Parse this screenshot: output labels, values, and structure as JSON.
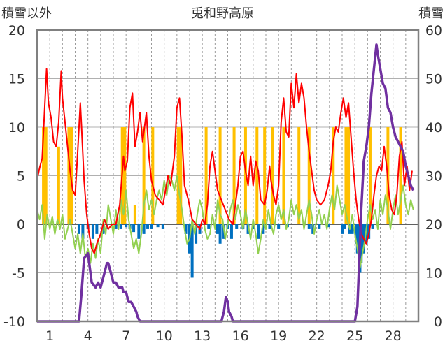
{
  "chart_data": {
    "type": "line",
    "title": "兎和野高原",
    "y_left_label": "積雪以外",
    "y_right_label": "積雪",
    "y_left_ticks": [
      "20",
      "15",
      "10",
      "5",
      "0",
      "-5",
      "-10"
    ],
    "y_right_ticks": [
      "60",
      "50",
      "40",
      "30",
      "20",
      "10",
      "0"
    ],
    "y_left_lim": [
      -10,
      20
    ],
    "y_right_lim": [
      0,
      60
    ],
    "x_lim": [
      0,
      30
    ],
    "x_ticks": [
      {
        "x": 1,
        "label": "1"
      },
      {
        "x": 4,
        "label": "4"
      },
      {
        "x": 7,
        "label": "7"
      },
      {
        "x": 10,
        "label": "10"
      },
      {
        "x": 13,
        "label": "13"
      },
      {
        "x": 16,
        "label": "16"
      },
      {
        "x": 19,
        "label": "19"
      },
      {
        "x": 22,
        "label": "22"
      },
      {
        "x": 25,
        "label": "25"
      },
      {
        "x": 28,
        "label": "28"
      }
    ],
    "grid": true,
    "colors": {
      "temperature": "#ff0000",
      "wind": "#92d050",
      "precipitation": "#ffc000",
      "negative_bar": "#0070c0",
      "snow_depth": "#7030a0"
    },
    "temperature": [
      [
        0.0,
        4.6
      ],
      [
        0.2,
        5.8
      ],
      [
        0.4,
        6.8
      ],
      [
        0.6,
        12.0
      ],
      [
        0.75,
        16.0
      ],
      [
        0.9,
        12.5
      ],
      [
        1.1,
        11.0
      ],
      [
        1.3,
        8.5
      ],
      [
        1.5,
        8.0
      ],
      [
        1.7,
        10.5
      ],
      [
        1.9,
        15.8
      ],
      [
        2.0,
        13.0
      ],
      [
        2.2,
        10.5
      ],
      [
        2.4,
        8.0
      ],
      [
        2.6,
        5.5
      ],
      [
        2.8,
        3.5
      ],
      [
        3.0,
        3.0
      ],
      [
        3.2,
        7.5
      ],
      [
        3.4,
        12.5
      ],
      [
        3.5,
        10.0
      ],
      [
        3.7,
        4.5
      ],
      [
        3.9,
        1.0
      ],
      [
        4.1,
        -1.0
      ],
      [
        4.3,
        -2.5
      ],
      [
        4.5,
        -3.0
      ],
      [
        4.7,
        -2.0
      ],
      [
        5.0,
        -1.0
      ],
      [
        5.3,
        0.5
      ],
      [
        5.6,
        -0.5
      ],
      [
        5.9,
        0.0
      ],
      [
        6.2,
        0.0
      ],
      [
        6.5,
        2.0
      ],
      [
        6.8,
        7.0
      ],
      [
        6.9,
        5.5
      ],
      [
        7.1,
        6.5
      ],
      [
        7.3,
        12.0
      ],
      [
        7.5,
        13.5
      ],
      [
        7.7,
        8.0
      ],
      [
        7.9,
        9.5
      ],
      [
        8.1,
        11.5
      ],
      [
        8.3,
        8.5
      ],
      [
        8.5,
        10.5
      ],
      [
        8.6,
        11.5
      ],
      [
        8.8,
        7.0
      ],
      [
        9.0,
        4.5
      ],
      [
        9.3,
        3.0
      ],
      [
        9.6,
        2.5
      ],
      [
        9.9,
        2.0
      ],
      [
        10.1,
        3.5
      ],
      [
        10.3,
        5.0
      ],
      [
        10.5,
        4.0
      ],
      [
        10.8,
        7.0
      ],
      [
        11.0,
        12.0
      ],
      [
        11.2,
        13.0
      ],
      [
        11.4,
        9.0
      ],
      [
        11.6,
        4.0
      ],
      [
        11.9,
        2.5
      ],
      [
        12.2,
        0.5
      ],
      [
        12.5,
        0.0
      ],
      [
        12.8,
        -0.5
      ],
      [
        13.0,
        0.5
      ],
      [
        13.2,
        0.0
      ],
      [
        13.4,
        2.0
      ],
      [
        13.6,
        6.0
      ],
      [
        13.8,
        7.5
      ],
      [
        14.0,
        5.5
      ],
      [
        14.2,
        3.5
      ],
      [
        14.5,
        2.5
      ],
      [
        14.8,
        1.5
      ],
      [
        15.1,
        0.5
      ],
      [
        15.4,
        0.0
      ],
      [
        15.6,
        2.0
      ],
      [
        15.8,
        4.0
      ],
      [
        16.0,
        7.0
      ],
      [
        16.2,
        7.5
      ],
      [
        16.4,
        5.5
      ],
      [
        16.6,
        4.0
      ],
      [
        16.8,
        7.0
      ],
      [
        17.0,
        4.0
      ],
      [
        17.2,
        6.5
      ],
      [
        17.4,
        5.5
      ],
      [
        17.6,
        2.5
      ],
      [
        17.9,
        2.0
      ],
      [
        18.1,
        3.5
      ],
      [
        18.3,
        6.0
      ],
      [
        18.4,
        4.5
      ],
      [
        18.6,
        3.0
      ],
      [
        18.8,
        2.0
      ],
      [
        19.0,
        4.0
      ],
      [
        19.2,
        10.5
      ],
      [
        19.4,
        13.0
      ],
      [
        19.6,
        9.5
      ],
      [
        19.8,
        9.0
      ],
      [
        20.0,
        14.5
      ],
      [
        20.2,
        12.0
      ],
      [
        20.4,
        15.5
      ],
      [
        20.6,
        12.5
      ],
      [
        20.8,
        14.5
      ],
      [
        21.0,
        13.0
      ],
      [
        21.2,
        10.0
      ],
      [
        21.4,
        7.5
      ],
      [
        21.6,
        5.5
      ],
      [
        21.8,
        3.5
      ],
      [
        22.0,
        2.5
      ],
      [
        22.3,
        2.0
      ],
      [
        22.6,
        2.5
      ],
      [
        22.9,
        4.0
      ],
      [
        23.1,
        5.5
      ],
      [
        23.3,
        8.5
      ],
      [
        23.5,
        10.0
      ],
      [
        23.7,
        9.5
      ],
      [
        23.9,
        11.5
      ],
      [
        24.1,
        13.0
      ],
      [
        24.3,
        11.0
      ],
      [
        24.5,
        12.5
      ],
      [
        24.7,
        9.0
      ],
      [
        24.9,
        5.5
      ],
      [
        25.1,
        2.5
      ],
      [
        25.3,
        0.5
      ],
      [
        25.5,
        -1.0
      ],
      [
        25.7,
        -1.5
      ],
      [
        25.9,
        -2.0
      ],
      [
        26.1,
        -1.0
      ],
      [
        26.3,
        0.5
      ],
      [
        26.5,
        3.0
      ],
      [
        26.7,
        5.0
      ],
      [
        26.9,
        6.0
      ],
      [
        27.1,
        5.5
      ],
      [
        27.3,
        8.0
      ],
      [
        27.5,
        6.0
      ],
      [
        27.7,
        3.0
      ],
      [
        27.9,
        1.5
      ],
      [
        28.1,
        1.0
      ],
      [
        28.3,
        3.0
      ],
      [
        28.5,
        7.0
      ],
      [
        28.7,
        8.5
      ],
      [
        28.9,
        4.0
      ],
      [
        29.1,
        6.0
      ],
      [
        29.3,
        3.5
      ],
      [
        29.5,
        5.5
      ]
    ],
    "wind": [
      [
        0.0,
        1.5
      ],
      [
        0.2,
        0.5
      ],
      [
        0.4,
        2.0
      ],
      [
        0.6,
        -1.5
      ],
      [
        0.8,
        1.0
      ],
      [
        1.0,
        -0.5
      ],
      [
        1.2,
        0.8
      ],
      [
        1.4,
        -1.0
      ],
      [
        1.6,
        0.5
      ],
      [
        1.8,
        -0.5
      ],
      [
        2.0,
        1.0
      ],
      [
        2.2,
        -1.5
      ],
      [
        2.4,
        -0.5
      ],
      [
        2.6,
        0.5
      ],
      [
        2.8,
        -1.0
      ],
      [
        3.0,
        -2.5
      ],
      [
        3.2,
        -1.0
      ],
      [
        3.4,
        -3.0
      ],
      [
        3.6,
        -1.0
      ],
      [
        3.8,
        -3.5
      ],
      [
        4.0,
        -2.5
      ],
      [
        4.2,
        -4.0
      ],
      [
        4.4,
        -2.0
      ],
      [
        4.6,
        -3.5
      ],
      [
        4.8,
        -1.5
      ],
      [
        5.0,
        -3.0
      ],
      [
        5.2,
        0.5
      ],
      [
        5.4,
        -1.0
      ],
      [
        5.6,
        2.0
      ],
      [
        5.8,
        0.5
      ],
      [
        6.0,
        -1.0
      ],
      [
        6.2,
        1.5
      ],
      [
        6.4,
        -0.5
      ],
      [
        6.6,
        2.5
      ],
      [
        6.8,
        1.0
      ],
      [
        7.0,
        3.5
      ],
      [
        7.2,
        0.5
      ],
      [
        7.4,
        -1.0
      ],
      [
        7.6,
        -2.5
      ],
      [
        7.8,
        -1.5
      ],
      [
        8.0,
        -3.0
      ],
      [
        8.2,
        -1.0
      ],
      [
        8.4,
        2.0
      ],
      [
        8.6,
        3.5
      ],
      [
        8.8,
        1.5
      ],
      [
        9.0,
        2.5
      ],
      [
        9.2,
        1.0
      ],
      [
        9.4,
        2.5
      ],
      [
        9.6,
        3.5
      ],
      [
        9.8,
        2.5
      ],
      [
        10.0,
        4.5
      ],
      [
        10.2,
        3.0
      ],
      [
        10.4,
        5.0
      ],
      [
        10.6,
        4.5
      ],
      [
        10.8,
        3.5
      ],
      [
        11.0,
        5.0
      ],
      [
        11.2,
        3.0
      ],
      [
        11.4,
        1.5
      ],
      [
        11.6,
        -0.5
      ],
      [
        11.8,
        -2.0
      ],
      [
        12.0,
        -1.5
      ],
      [
        12.2,
        0.5
      ],
      [
        12.4,
        -1.0
      ],
      [
        12.6,
        1.0
      ],
      [
        12.8,
        2.5
      ],
      [
        13.0,
        1.5
      ],
      [
        13.2,
        -0.5
      ],
      [
        13.4,
        -1.5
      ],
      [
        13.6,
        -1.0
      ],
      [
        13.8,
        1.0
      ],
      [
        14.0,
        -0.5
      ],
      [
        14.2,
        2.5
      ],
      [
        14.4,
        1.0
      ],
      [
        14.6,
        0.5
      ],
      [
        14.8,
        -1.5
      ],
      [
        15.0,
        0.0
      ],
      [
        15.2,
        1.5
      ],
      [
        15.4,
        2.5
      ],
      [
        15.6,
        0.5
      ],
      [
        15.8,
        2.0
      ],
      [
        16.0,
        1.0
      ],
      [
        16.2,
        -0.5
      ],
      [
        16.4,
        1.5
      ],
      [
        16.6,
        0.0
      ],
      [
        16.8,
        -1.5
      ],
      [
        17.0,
        0.5
      ],
      [
        17.2,
        -1.0
      ],
      [
        17.4,
        -3.0
      ],
      [
        17.6,
        -1.5
      ],
      [
        17.8,
        0.5
      ],
      [
        18.0,
        -0.5
      ],
      [
        18.2,
        1.5
      ],
      [
        18.4,
        0.0
      ],
      [
        18.6,
        -1.0
      ],
      [
        18.8,
        1.0
      ],
      [
        19.0,
        2.0
      ],
      [
        19.2,
        0.5
      ],
      [
        19.4,
        1.5
      ],
      [
        19.6,
        -0.5
      ],
      [
        19.8,
        0.5
      ],
      [
        20.0,
        2.5
      ],
      [
        20.2,
        1.0
      ],
      [
        20.4,
        2.0
      ],
      [
        20.6,
        0.5
      ],
      [
        20.8,
        1.5
      ],
      [
        21.0,
        -0.5
      ],
      [
        21.2,
        1.0
      ],
      [
        21.4,
        2.5
      ],
      [
        21.6,
        1.0
      ],
      [
        21.8,
        -1.0
      ],
      [
        22.0,
        0.5
      ],
      [
        22.2,
        1.5
      ],
      [
        22.4,
        0.0
      ],
      [
        22.6,
        1.0
      ],
      [
        22.8,
        -0.5
      ],
      [
        23.0,
        1.5
      ],
      [
        23.2,
        3.0
      ],
      [
        23.4,
        1.5
      ],
      [
        23.6,
        4.0
      ],
      [
        23.8,
        2.5
      ],
      [
        24.0,
        1.0
      ],
      [
        24.2,
        2.0
      ],
      [
        24.4,
        0.5
      ],
      [
        24.6,
        -0.5
      ],
      [
        24.8,
        1.0
      ],
      [
        25.0,
        -1.0
      ],
      [
        25.2,
        -2.5
      ],
      [
        25.4,
        -4.5
      ],
      [
        25.6,
        -3.0
      ],
      [
        25.8,
        -1.5
      ],
      [
        26.0,
        0.5
      ],
      [
        26.2,
        2.0
      ],
      [
        26.4,
        0.5
      ],
      [
        26.6,
        1.5
      ],
      [
        26.8,
        -0.5
      ],
      [
        27.0,
        2.5
      ],
      [
        27.2,
        1.0
      ],
      [
        27.4,
        3.0
      ],
      [
        27.6,
        1.5
      ],
      [
        27.8,
        -0.5
      ],
      [
        28.0,
        1.5
      ],
      [
        28.2,
        3.0
      ],
      [
        28.4,
        1.0
      ],
      [
        28.6,
        2.5
      ],
      [
        28.8,
        4.0
      ],
      [
        29.0,
        2.0
      ],
      [
        29.2,
        1.0
      ],
      [
        29.4,
        2.5
      ],
      [
        29.6,
        1.5
      ]
    ],
    "precipitation_bars": [
      [
        0.5,
        10
      ],
      [
        0.7,
        10
      ],
      [
        1.7,
        8
      ],
      [
        2.5,
        10
      ],
      [
        2.7,
        10
      ],
      [
        6.7,
        10
      ],
      [
        6.9,
        10
      ],
      [
        7.7,
        2
      ],
      [
        8.4,
        10
      ],
      [
        9.1,
        10
      ],
      [
        11.1,
        10
      ],
      [
        11.3,
        10
      ],
      [
        13.3,
        10
      ],
      [
        14.4,
        10
      ],
      [
        15.5,
        10
      ],
      [
        16.4,
        10
      ],
      [
        17.3,
        10
      ],
      [
        17.9,
        10
      ],
      [
        18.5,
        10
      ],
      [
        19.4,
        10
      ],
      [
        20.6,
        10
      ],
      [
        21.4,
        10
      ],
      [
        23.3,
        10
      ],
      [
        24.3,
        10
      ],
      [
        24.5,
        10
      ],
      [
        26.2,
        10
      ],
      [
        27.6,
        10
      ],
      [
        28.6,
        10
      ]
    ],
    "negative_bars": [
      [
        3.3,
        -1.0
      ],
      [
        3.6,
        -1.5
      ],
      [
        4.0,
        -0.5
      ],
      [
        4.4,
        -1.5
      ],
      [
        4.7,
        -1.0
      ],
      [
        5.2,
        -1.0
      ],
      [
        5.5,
        -0.5
      ],
      [
        6.2,
        -0.5
      ],
      [
        6.6,
        -0.5
      ],
      [
        7.0,
        -0.3
      ],
      [
        7.3,
        -0.5
      ],
      [
        7.6,
        -0.8
      ],
      [
        8.0,
        -1.5
      ],
      [
        8.4,
        -1.0
      ],
      [
        8.7,
        -0.5
      ],
      [
        9.0,
        -0.5
      ],
      [
        9.5,
        -0.3
      ],
      [
        9.9,
        -0.5
      ],
      [
        11.7,
        -1.0
      ],
      [
        12.0,
        -3.0
      ],
      [
        12.2,
        -5.5
      ],
      [
        12.5,
        -2.0
      ],
      [
        12.8,
        -1.0
      ],
      [
        13.5,
        -0.5
      ],
      [
        14.2,
        -1.0
      ],
      [
        14.4,
        -2.0
      ],
      [
        14.7,
        -1.5
      ],
      [
        15.0,
        -0.5
      ],
      [
        15.3,
        -1.5
      ],
      [
        15.7,
        -0.5
      ],
      [
        16.2,
        -0.5
      ],
      [
        16.6,
        -1.0
      ],
      [
        17.0,
        -0.5
      ],
      [
        17.4,
        -1.5
      ],
      [
        17.8,
        -1.0
      ],
      [
        18.3,
        -0.5
      ],
      [
        19.0,
        -0.5
      ],
      [
        19.7,
        -0.3
      ],
      [
        21.4,
        -0.5
      ],
      [
        21.7,
        -1.0
      ],
      [
        22.2,
        -0.5
      ],
      [
        22.9,
        -0.3
      ],
      [
        24.0,
        -1.0
      ],
      [
        24.2,
        -0.5
      ],
      [
        24.6,
        -1.0
      ],
      [
        24.8,
        -1.0
      ],
      [
        25.1,
        -2.0
      ],
      [
        25.2,
        -3.0
      ],
      [
        25.4,
        -5.0
      ],
      [
        25.5,
        -4.0
      ],
      [
        25.7,
        -3.0
      ],
      [
        25.9,
        -2.0
      ],
      [
        26.1,
        -1.5
      ],
      [
        26.4,
        -0.5
      ]
    ],
    "snow_depth": [
      [
        0.0,
        0
      ],
      [
        3.3,
        0
      ],
      [
        3.5,
        6
      ],
      [
        3.7,
        13
      ],
      [
        4.0,
        14
      ],
      [
        4.2,
        10
      ],
      [
        4.3,
        8
      ],
      [
        4.6,
        7
      ],
      [
        4.8,
        8
      ],
      [
        5.0,
        7
      ],
      [
        5.2,
        9
      ],
      [
        5.5,
        12
      ],
      [
        5.6,
        12
      ],
      [
        5.8,
        10
      ],
      [
        6.0,
        8
      ],
      [
        6.2,
        8
      ],
      [
        6.4,
        7
      ],
      [
        6.7,
        7
      ],
      [
        6.8,
        6
      ],
      [
        7.0,
        6
      ],
      [
        7.2,
        4
      ],
      [
        7.4,
        4
      ],
      [
        7.6,
        3
      ],
      [
        7.8,
        2
      ],
      [
        7.9,
        1
      ],
      [
        8.1,
        0
      ],
      [
        14.2,
        0
      ],
      [
        14.5,
        0
      ],
      [
        14.7,
        2
      ],
      [
        14.85,
        5
      ],
      [
        15.0,
        4
      ],
      [
        15.1,
        2
      ],
      [
        15.3,
        1
      ],
      [
        15.4,
        0
      ],
      [
        15.6,
        0
      ],
      [
        25.0,
        0
      ],
      [
        25.2,
        3
      ],
      [
        25.5,
        23
      ],
      [
        25.7,
        33
      ],
      [
        25.9,
        36
      ],
      [
        26.1,
        40
      ],
      [
        26.3,
        47
      ],
      [
        26.5,
        52
      ],
      [
        26.7,
        57
      ],
      [
        26.8,
        55
      ],
      [
        27.0,
        52
      ],
      [
        27.2,
        49
      ],
      [
        27.4,
        48
      ],
      [
        27.6,
        44
      ],
      [
        27.8,
        43
      ],
      [
        28.0,
        40
      ],
      [
        28.2,
        38
      ],
      [
        28.4,
        37
      ],
      [
        28.6,
        36
      ],
      [
        28.8,
        35
      ],
      [
        29.0,
        32
      ],
      [
        29.2,
        30
      ],
      [
        29.4,
        28
      ],
      [
        29.6,
        27
      ]
    ]
  }
}
